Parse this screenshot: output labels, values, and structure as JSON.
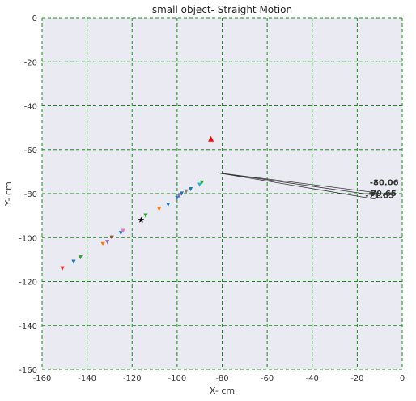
{
  "chart_data": {
    "type": "scatter",
    "title": "small object- Straight Motion",
    "xlabel": "X- cm",
    "ylabel": "Y- cm",
    "xlim": [
      -160,
      0
    ],
    "ylim": [
      -160,
      0
    ],
    "xticks": [
      -160,
      -140,
      -120,
      -100,
      -80,
      -60,
      -40,
      -20,
      0
    ],
    "yticks": [
      0,
      -20,
      -40,
      -60,
      -80,
      -100,
      -120,
      -140,
      -160
    ],
    "grid": true,
    "grid_color": "#1a8c1a",
    "background": "#eaeaf2",
    "series": [
      {
        "marker": "triangle-down",
        "points": [
          {
            "x": -151,
            "y": -114,
            "color": "#d62728"
          },
          {
            "x": -146,
            "y": -111,
            "color": "#1f77b4"
          },
          {
            "x": -143,
            "y": -109,
            "color": "#2ca02c"
          },
          {
            "x": -133,
            "y": -103,
            "color": "#ff7f0e"
          },
          {
            "x": -131,
            "y": -102,
            "color": "#9467bd"
          },
          {
            "x": -129,
            "y": -100,
            "color": "#8c564b"
          },
          {
            "x": -125,
            "y": -98,
            "color": "#1f77b4"
          },
          {
            "x": -124,
            "y": -97,
            "color": "#e377c2"
          },
          {
            "x": -114,
            "y": -90,
            "color": "#2ca02c"
          },
          {
            "x": -108,
            "y": -87,
            "color": "#ff7f0e"
          },
          {
            "x": -104,
            "y": -85,
            "color": "#1f77b4"
          },
          {
            "x": -100,
            "y": -82,
            "color": "#1f77b4"
          },
          {
            "x": -99,
            "y": -81,
            "color": "#9467bd"
          },
          {
            "x": -98,
            "y": -80,
            "color": "#1f77b4"
          },
          {
            "x": -96,
            "y": -79,
            "color": "#7f7f7f"
          },
          {
            "x": -94,
            "y": -78,
            "color": "#1f77b4"
          },
          {
            "x": -90,
            "y": -76,
            "color": "#17becf"
          },
          {
            "x": -89,
            "y": -75,
            "color": "#2ca02c"
          }
        ]
      },
      {
        "marker": "star",
        "points": [
          {
            "x": -116,
            "y": -92,
            "color": "#000000"
          }
        ]
      },
      {
        "marker": "triangle-up",
        "points": [
          {
            "x": -85,
            "y": -55,
            "color": "#ff0000"
          }
        ]
      }
    ],
    "lines": [
      {
        "x1": -82,
        "y1": -70.5,
        "x2": -12,
        "y2": -79.5
      },
      {
        "x1": -82,
        "y1": -70.5,
        "x2": -10,
        "y2": -81
      },
      {
        "x1": -82,
        "y1": -70.5,
        "x2": -12,
        "y2": -82.5
      }
    ],
    "annotations": [
      {
        "text": "-80.06",
        "x": -8,
        "y": -75
      },
      {
        "text": "-79.65",
        "x": -9,
        "y": -80
      },
      {
        "text": "-71.65",
        "x": -10,
        "y": -81
      }
    ]
  }
}
